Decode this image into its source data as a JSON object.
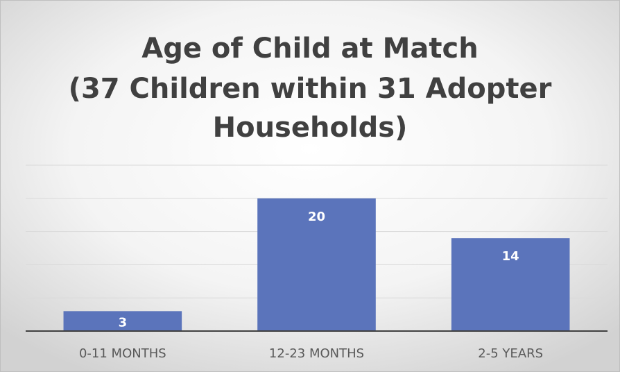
{
  "chart_data": {
    "type": "bar",
    "title": [
      "Age of Child at Match",
      "(37 Children within 31 Adopter",
      "Households)"
    ],
    "categories": [
      "0-11 MONTHS",
      "12-23 MONTHS",
      "2-5 YEARS"
    ],
    "values": [
      3,
      20,
      14
    ],
    "color": "#5b74bb",
    "ylim": [
      0,
      25
    ],
    "yticks": [
      0,
      5,
      10,
      15,
      20,
      25
    ],
    "grid": true
  }
}
